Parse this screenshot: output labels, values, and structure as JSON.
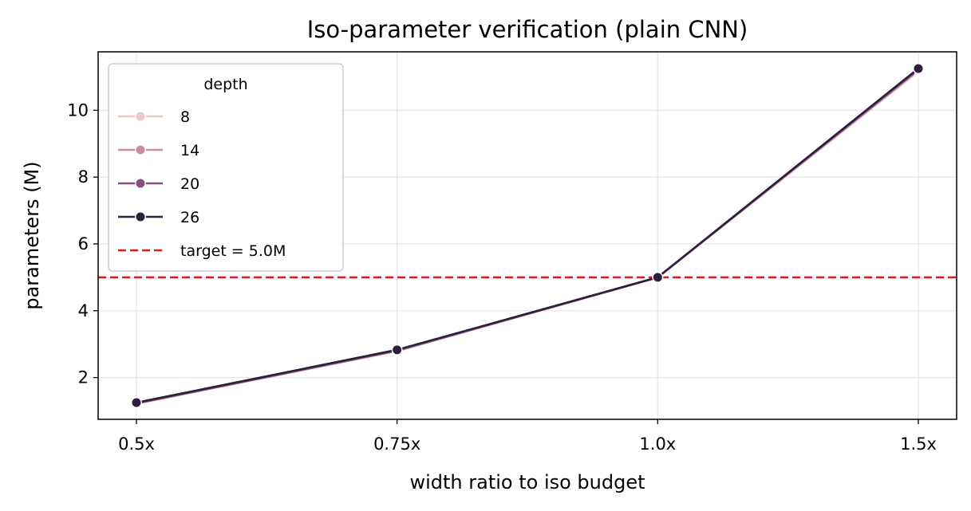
{
  "chart_data": {
    "type": "line",
    "title": "Iso-parameter verification (plain CNN)",
    "xlabel": "width ratio to iso budget",
    "ylabel": "parameters (M)",
    "categories": [
      "0.5x",
      "0.75x",
      "1.0x",
      "1.5x"
    ],
    "ylim": [
      0.75,
      11.75
    ],
    "yticks": [
      2,
      4,
      6,
      8,
      10
    ],
    "grid": true,
    "legend": {
      "title": "depth",
      "placement": "top-left"
    },
    "series": [
      {
        "name": "8",
        "color": "#ebccc4",
        "values": [
          1.22,
          2.79,
          4.99,
          11.16
        ]
      },
      {
        "name": "14",
        "color": "#c98ca0",
        "values": [
          1.22,
          2.8,
          5.0,
          11.19
        ]
      },
      {
        "name": "20",
        "color": "#874f7f",
        "values": [
          1.23,
          2.81,
          5.0,
          11.22
        ]
      },
      {
        "name": "26",
        "color": "#2d1e3e",
        "values": [
          1.25,
          2.83,
          5.0,
          11.25
        ]
      }
    ],
    "reference_line": {
      "label": "target = 5.0M",
      "value": 5.0,
      "color": "#e31a1c",
      "style": "dashed"
    }
  }
}
